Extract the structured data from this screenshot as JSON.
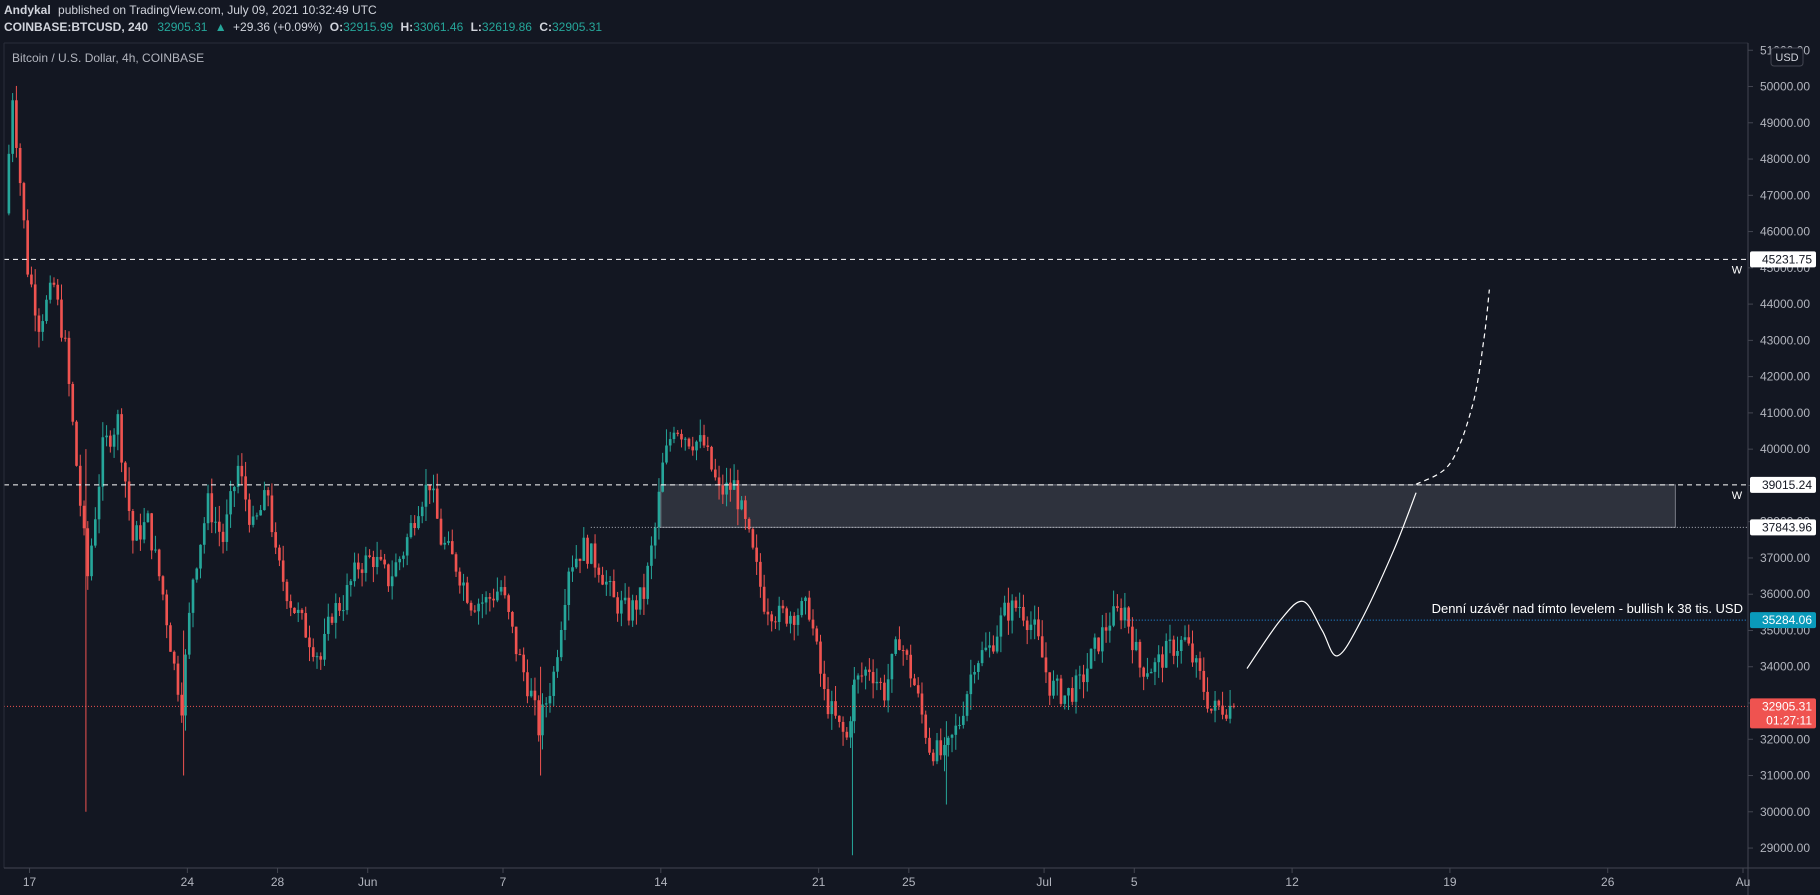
{
  "header": {
    "author": "Andykal",
    "published_text": "published on TradingView.com, July 09, 2021 10:32:49 UTC",
    "symbol": "COINBASE:BTCUSD, 240",
    "last_price": "32905.31",
    "arrow": "▲",
    "change": "+29.36 (+0.09%)",
    "ohlc": [
      {
        "label": "O:",
        "value": "32915.99"
      },
      {
        "label": "H:",
        "value": "33061.46"
      },
      {
        "label": "L:",
        "value": "32619.86"
      },
      {
        "label": "C:",
        "value": "32905.31"
      }
    ]
  },
  "chart_title": "Bitcoin / U.S. Dollar, 4h, COINBASE",
  "currency_button": "USD",
  "colors": {
    "background": "#131722",
    "up": "#26a69a",
    "down": "#ef5350",
    "text": "#d1d4dc",
    "axis_text": "#b2b5be",
    "grid_line": "#2a2e39"
  },
  "chart_data": {
    "type": "candlestick",
    "series": "BTCUSD 4h",
    "ylim": [
      28450,
      51200
    ],
    "y_ticks": [
      29000,
      30000,
      31000,
      32000,
      33000,
      34000,
      35000,
      36000,
      37000,
      38000,
      39000,
      40000,
      41000,
      42000,
      43000,
      44000,
      45000,
      46000,
      47000,
      48000,
      49000,
      50000,
      51000
    ],
    "y_tick_labels": [
      "29000.00",
      "30000.00",
      "31000.00",
      "32000.00",
      "33000.00",
      "34000.00",
      "35000.00",
      "36000.00",
      "37000.00",
      "38000.00",
      "39000.00",
      "40000.00",
      "41000.00",
      "42000.00",
      "43000.00",
      "44000.00",
      "45000.00",
      "46000.00",
      "47000.00",
      "48000.00",
      "49000.00",
      "50000.00",
      "51000.00"
    ],
    "x_range": [
      "2021-05-16",
      "2021-08-01"
    ],
    "x_ticks": [
      {
        "label": "17",
        "date": "2021-05-17"
      },
      {
        "label": "24",
        "date": "2021-05-24"
      },
      {
        "label": "28",
        "date": "2021-05-28"
      },
      {
        "label": "Jun",
        "date": "2021-06-01"
      },
      {
        "label": "7",
        "date": "2021-06-07"
      },
      {
        "label": "14",
        "date": "2021-06-14"
      },
      {
        "label": "21",
        "date": "2021-06-21"
      },
      {
        "label": "25",
        "date": "2021-06-25"
      },
      {
        "label": "Jul",
        "date": "2021-07-01"
      },
      {
        "label": "5",
        "date": "2021-07-05"
      },
      {
        "label": "12",
        "date": "2021-07-12"
      },
      {
        "label": "19",
        "date": "2021-07-19"
      },
      {
        "label": "26",
        "date": "2021-07-26"
      },
      {
        "label": "Au",
        "date": "2021-08-01"
      }
    ],
    "price_path": [
      [
        "2021-05-16 00:00",
        46500
      ],
      [
        "2021-05-16 08:00",
        49800
      ],
      [
        "2021-05-17 00:00",
        45000
      ],
      [
        "2021-05-17 12:00",
        43500
      ],
      [
        "2021-05-18 04:00",
        44500
      ],
      [
        "2021-05-18 16:00",
        42800
      ],
      [
        "2021-05-19 08:00",
        38500
      ],
      [
        "2021-05-19 16:00",
        36500
      ],
      [
        "2021-05-20 08:00",
        40000
      ],
      [
        "2021-05-21 00:00",
        40800
      ],
      [
        "2021-05-21 16:00",
        37500
      ],
      [
        "2021-05-22 08:00",
        38000
      ],
      [
        "2021-05-23 00:00",
        36000
      ],
      [
        "2021-05-23 12:00",
        34000
      ],
      [
        "2021-05-23 20:00",
        33000
      ],
      [
        "2021-05-24 08:00",
        36500
      ],
      [
        "2021-05-25 00:00",
        38500
      ],
      [
        "2021-05-25 16:00",
        37500
      ],
      [
        "2021-05-26 08:00",
        39500
      ],
      [
        "2021-05-27 00:00",
        37800
      ],
      [
        "2021-05-27 16:00",
        38800
      ],
      [
        "2021-05-28 00:00",
        37000
      ],
      [
        "2021-05-28 16:00",
        35800
      ],
      [
        "2021-05-29 08:00",
        35000
      ],
      [
        "2021-05-30 00:00",
        34200
      ],
      [
        "2021-05-30 12:00",
        35500
      ],
      [
        "2021-05-31 00:00",
        35800
      ],
      [
        "2021-05-31 16:00",
        36800
      ],
      [
        "2021-06-01 08:00",
        37000
      ],
      [
        "2021-06-02 00:00",
        36400
      ],
      [
        "2021-06-02 16:00",
        37200
      ],
      [
        "2021-06-03 08:00",
        38500
      ],
      [
        "2021-06-03 20:00",
        39100
      ],
      [
        "2021-06-04 08:00",
        37500
      ],
      [
        "2021-06-05 00:00",
        36800
      ],
      [
        "2021-06-05 16:00",
        35800
      ],
      [
        "2021-06-06 08:00",
        35800
      ],
      [
        "2021-06-07 00:00",
        36200
      ],
      [
        "2021-06-07 16:00",
        34500
      ],
      [
        "2021-06-08 08:00",
        33200
      ],
      [
        "2021-06-08 16:00",
        32300
      ],
      [
        "2021-06-09 08:00",
        33800
      ],
      [
        "2021-06-10 00:00",
        36800
      ],
      [
        "2021-06-10 16:00",
        37300
      ],
      [
        "2021-06-11 08:00",
        36800
      ],
      [
        "2021-06-12 00:00",
        35800
      ],
      [
        "2021-06-12 16:00",
        35500
      ],
      [
        "2021-06-13 08:00",
        36000
      ],
      [
        "2021-06-13 20:00",
        37800
      ],
      [
        "2021-06-14 04:00",
        39500
      ],
      [
        "2021-06-14 16:00",
        40700
      ],
      [
        "2021-06-15 08:00",
        40300
      ],
      [
        "2021-06-16 00:00",
        40100
      ],
      [
        "2021-06-16 16:00",
        38800
      ],
      [
        "2021-06-17 08:00",
        39000
      ],
      [
        "2021-06-18 00:00",
        37500
      ],
      [
        "2021-06-18 16:00",
        35800
      ],
      [
        "2021-06-19 08:00",
        35400
      ],
      [
        "2021-06-20 00:00",
        35500
      ],
      [
        "2021-06-20 16:00",
        35600
      ],
      [
        "2021-06-21 08:00",
        33200
      ],
      [
        "2021-06-22 00:00",
        32300
      ],
      [
        "2021-06-22 08:00",
        32000
      ],
      [
        "2021-06-22 16:00",
        33500
      ],
      [
        "2021-06-23 08:00",
        34000
      ],
      [
        "2021-06-24 00:00",
        33300
      ],
      [
        "2021-06-24 16:00",
        34800
      ],
      [
        "2021-06-25 08:00",
        33500
      ],
      [
        "2021-06-26 00:00",
        31800
      ],
      [
        "2021-06-26 16:00",
        31500
      ],
      [
        "2021-06-27 08:00",
        32500
      ],
      [
        "2021-06-28 00:00",
        34200
      ],
      [
        "2021-06-28 16:00",
        34500
      ],
      [
        "2021-06-29 08:00",
        35500
      ],
      [
        "2021-06-30 00:00",
        35700
      ],
      [
        "2021-06-30 16:00",
        35000
      ],
      [
        "2021-07-01 08:00",
        33500
      ],
      [
        "2021-07-02 00:00",
        33200
      ],
      [
        "2021-07-02 16:00",
        33500
      ],
      [
        "2021-07-03 08:00",
        34500
      ],
      [
        "2021-07-04 00:00",
        35300
      ],
      [
        "2021-07-04 16:00",
        35600
      ],
      [
        "2021-07-05 08:00",
        34000
      ],
      [
        "2021-07-06 00:00",
        34000
      ],
      [
        "2021-07-06 16:00",
        34500
      ],
      [
        "2021-07-07 08:00",
        34700
      ],
      [
        "2021-07-08 00:00",
        33700
      ],
      [
        "2021-07-08 12:00",
        32800
      ],
      [
        "2021-07-09 00:00",
        32900
      ],
      [
        "2021-07-09 08:00",
        32905
      ]
    ],
    "horizontal_levels": [
      {
        "price": 45231.75,
        "label": "45231.75",
        "style": "dashed",
        "marker": "W"
      },
      {
        "price": 39015.24,
        "label": "39015.24",
        "style": "dashed",
        "marker": "W"
      },
      {
        "price": 37843.96,
        "label": "37843.96",
        "style": "dotted"
      },
      {
        "price": 35284.06,
        "label": "35284.06",
        "style": "dotted-blue"
      },
      {
        "price": 32905.31,
        "label": "32905.31",
        "style": "last-price",
        "countdown": "01:27:11"
      }
    ],
    "zone": {
      "from_date": "2021-06-14",
      "to_date": "2021-07-29",
      "low": 37843.96,
      "high": 39015.24
    },
    "annotation": "Denní uzávěr nad tímto levelem - bullish k 38 tis. USD",
    "projection_path": [
      [
        "2021-07-10 00:00",
        33950
      ],
      [
        "2021-07-11 12:00",
        35300
      ],
      [
        "2021-07-12 12:00",
        35800
      ],
      [
        "2021-07-13 08:00",
        35000
      ],
      [
        "2021-07-14 00:00",
        34300
      ],
      [
        "2021-07-15 00:00",
        35200
      ],
      [
        "2021-07-16 12:00",
        37200
      ],
      [
        "2021-07-17 12:00",
        38800
      ]
    ],
    "projection_dashed_path": [
      [
        "2021-07-17 12:00",
        39030
      ],
      [
        "2021-07-19 00:00",
        39600
      ],
      [
        "2021-07-20 00:00",
        41200
      ],
      [
        "2021-07-20 12:00",
        43000
      ],
      [
        "2021-07-20 18:00",
        44400
      ]
    ]
  }
}
